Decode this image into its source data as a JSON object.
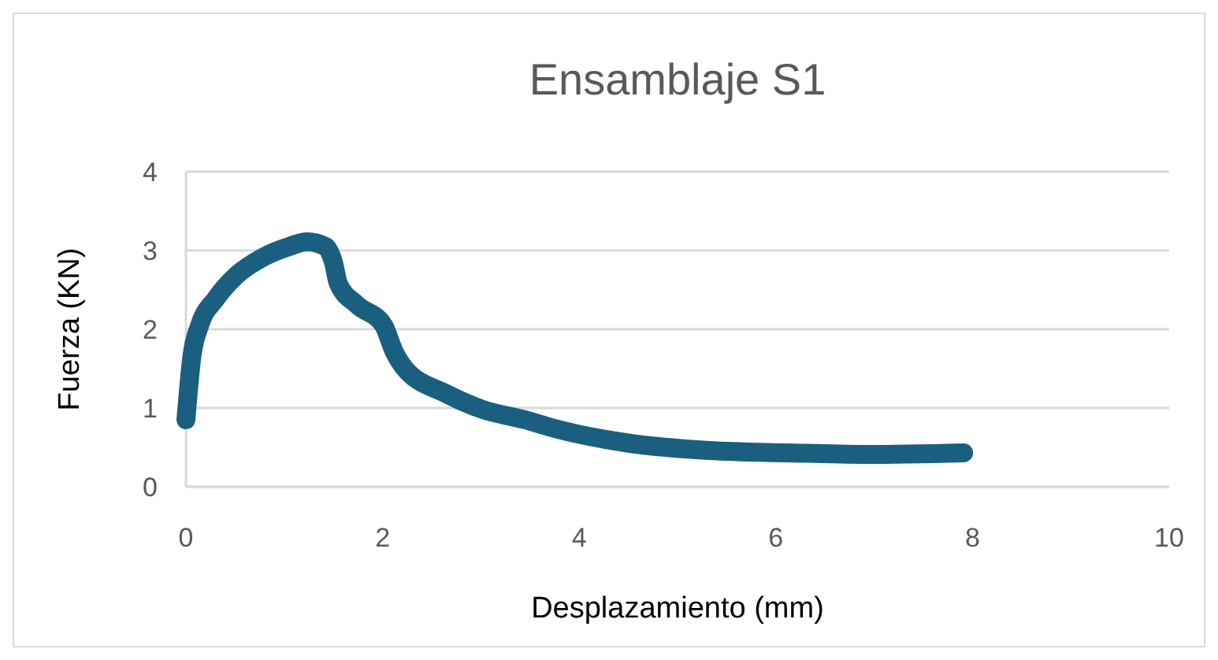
{
  "chart_data": {
    "type": "line",
    "title": "Ensamblaje S1",
    "xlabel": "Desplazamiento (mm)",
    "ylabel": "Fuerza (KN)",
    "xlim": [
      0,
      10
    ],
    "xticks": [
      0,
      2,
      4,
      6,
      8,
      10
    ],
    "ylim": [
      0,
      4
    ],
    "yticks": [
      0,
      1,
      2,
      3,
      4
    ],
    "grid": "y",
    "line_style": "solid",
    "series": [
      {
        "color": "#1a5f7f",
        "x": [
          0,
          0.06,
          0.14,
          0.3,
          0.51,
          0.78,
          1.05,
          1.23,
          1.42,
          1.5,
          1.55,
          1.74,
          2.01,
          2.12,
          2.22,
          2.65,
          3.02,
          3.45,
          3.72,
          4.52,
          5.32,
          6.12,
          6.92,
          7.91
        ],
        "values": [
          0.85,
          1.65,
          2.05,
          2.38,
          2.68,
          2.91,
          3.05,
          3.11,
          3.05,
          2.85,
          2.58,
          2.31,
          2.05,
          1.71,
          1.51,
          1.18,
          0.98,
          0.85,
          0.75,
          0.55,
          0.46,
          0.43,
          0.41,
          0.43
        ]
      }
    ]
  }
}
